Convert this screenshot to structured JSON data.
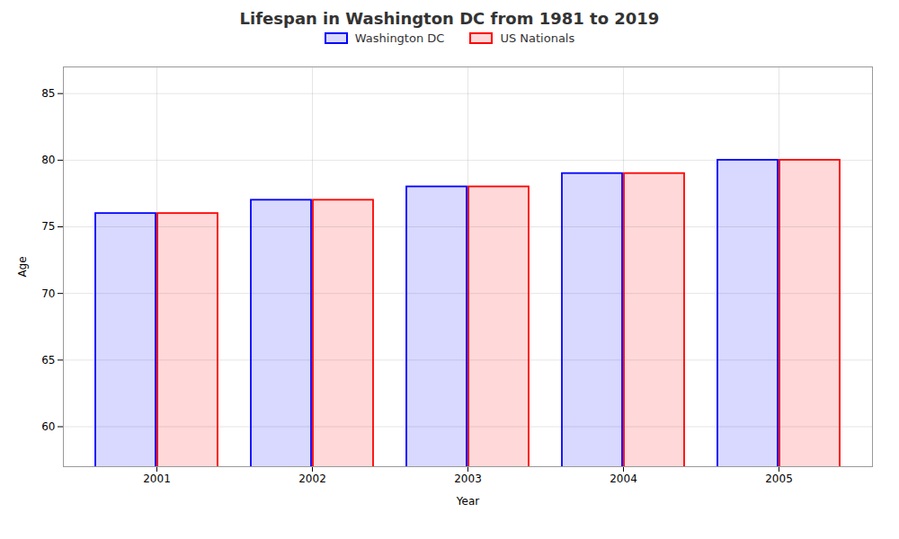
{
  "chart_data": {
    "type": "bar",
    "title": "Lifespan in Washington DC from 1981 to 2019",
    "xlabel": "Year",
    "ylabel": "Age",
    "categories": [
      "2001",
      "2002",
      "2003",
      "2004",
      "2005"
    ],
    "series": [
      {
        "name": "Washington DC",
        "color": "#0000ff",
        "values": [
          76.0,
          77.0,
          78.0,
          79.0,
          80.0
        ]
      },
      {
        "name": "US Nationals",
        "color": "#ff0000",
        "values": [
          76.0,
          77.0,
          78.0,
          79.0,
          80.0
        ]
      }
    ],
    "ylim": [
      57,
      87
    ],
    "yticks": [
      60,
      65,
      70,
      75,
      80,
      85
    ],
    "grid": true,
    "legend": "top"
  }
}
